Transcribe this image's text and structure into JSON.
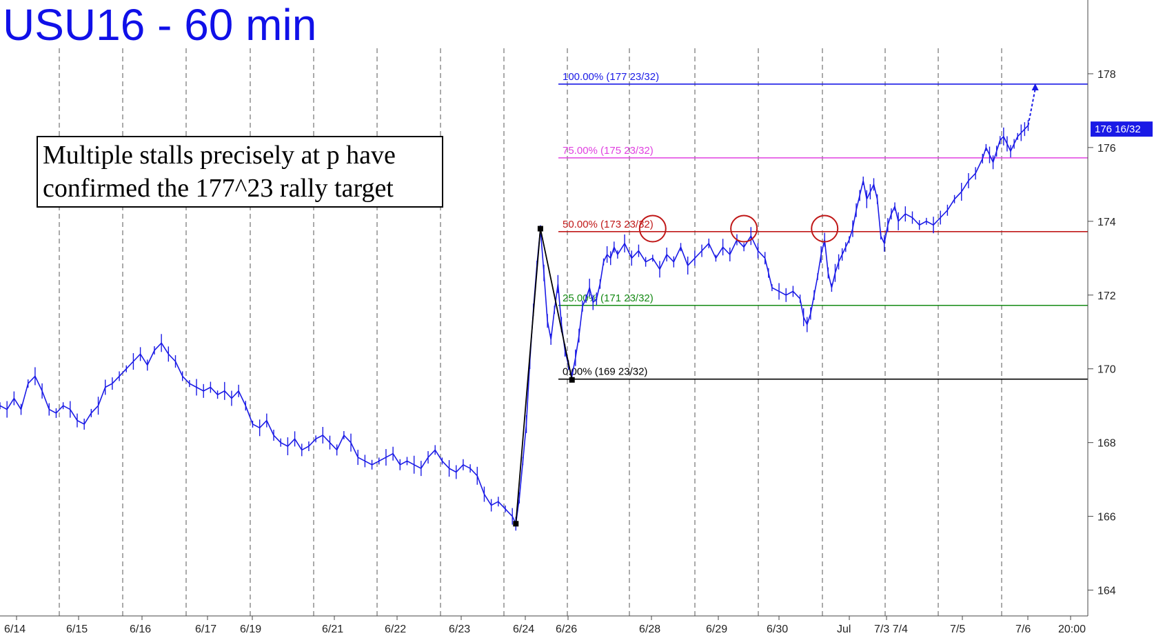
{
  "chart_data": {
    "type": "line",
    "title": "USU16 - 60 min",
    "y_axis": {
      "range": [
        163.3,
        180.0
      ],
      "ticks": [
        164,
        166,
        168,
        170,
        172,
        174,
        176,
        178
      ],
      "position": "right"
    },
    "x_axis": {
      "tick_labels": [
        "6/14",
        "6/15",
        "6/16",
        "6/17",
        "6/19",
        "6/21",
        "6/22",
        "6/23",
        "6/24",
        "6/26",
        "6/28",
        "6/29",
        "6/30",
        "Jul",
        "7/3 7/4",
        "7/5",
        "7/6",
        "20:00"
      ]
    },
    "grid": "vertical dashed session separators",
    "last_price": {
      "value": 176.5,
      "label": "176 16/32",
      "color": "#1a1ae6"
    },
    "series": [
      {
        "color": "#1a1ae6",
        "points": [
          [
            0,
            169.0
          ],
          [
            2,
            168.9
          ],
          [
            4,
            169.2
          ],
          [
            6,
            168.9
          ],
          [
            8,
            169.6
          ],
          [
            10,
            169.8
          ],
          [
            12,
            169.4
          ],
          [
            14,
            168.9
          ],
          [
            16,
            168.8
          ],
          [
            18,
            169.0
          ],
          [
            20,
            168.9
          ],
          [
            22,
            168.6
          ],
          [
            24,
            168.5
          ],
          [
            26,
            168.8
          ],
          [
            28,
            169.0
          ],
          [
            30,
            169.5
          ],
          [
            32,
            169.6
          ],
          [
            34,
            169.8
          ],
          [
            36,
            170.0
          ],
          [
            38,
            170.2
          ],
          [
            40,
            170.4
          ],
          [
            42,
            170.1
          ],
          [
            44,
            170.5
          ],
          [
            46,
            170.7
          ],
          [
            48,
            170.4
          ],
          [
            50,
            170.2
          ],
          [
            52,
            169.8
          ],
          [
            54,
            169.6
          ],
          [
            56,
            169.5
          ],
          [
            58,
            169.4
          ],
          [
            60,
            169.5
          ],
          [
            62,
            169.3
          ],
          [
            64,
            169.4
          ],
          [
            66,
            169.2
          ],
          [
            68,
            169.4
          ],
          [
            70,
            169.0
          ],
          [
            72,
            168.5
          ],
          [
            74,
            168.4
          ],
          [
            76,
            168.6
          ],
          [
            78,
            168.2
          ],
          [
            80,
            168.0
          ],
          [
            82,
            167.9
          ],
          [
            84,
            168.1
          ],
          [
            86,
            167.8
          ],
          [
            88,
            167.9
          ],
          [
            90,
            168.1
          ],
          [
            92,
            168.2
          ],
          [
            94,
            168.0
          ],
          [
            96,
            167.8
          ],
          [
            98,
            168.2
          ],
          [
            100,
            168.0
          ],
          [
            102,
            167.6
          ],
          [
            104,
            167.5
          ],
          [
            106,
            167.4
          ],
          [
            108,
            167.5
          ],
          [
            110,
            167.6
          ],
          [
            112,
            167.7
          ],
          [
            114,
            167.4
          ],
          [
            116,
            167.5
          ],
          [
            118,
            167.4
          ],
          [
            120,
            167.3
          ],
          [
            122,
            167.6
          ],
          [
            124,
            167.8
          ],
          [
            126,
            167.5
          ],
          [
            128,
            167.3
          ],
          [
            130,
            167.2
          ],
          [
            132,
            167.4
          ],
          [
            134,
            167.3
          ],
          [
            136,
            167.1
          ],
          [
            138,
            166.6
          ],
          [
            140,
            166.3
          ],
          [
            142,
            166.4
          ],
          [
            144,
            166.2
          ],
          [
            146,
            166.0
          ],
          [
            147,
            165.8
          ],
          [
            148,
            166.5
          ],
          [
            149,
            167.5
          ],
          [
            150,
            168.5
          ],
          [
            151,
            170.2
          ],
          [
            152,
            171.6
          ],
          [
            153,
            172.8
          ],
          [
            154,
            173.8
          ],
          [
            155,
            172.6
          ],
          [
            156,
            171.3
          ],
          [
            157,
            170.8
          ],
          [
            158,
            171.6
          ],
          [
            159,
            172.3
          ],
          [
            160,
            171.2
          ],
          [
            161,
            170.5
          ],
          [
            162,
            170.1
          ],
          [
            163,
            169.8
          ],
          [
            164,
            170.3
          ],
          [
            165,
            170.9
          ],
          [
            166,
            171.7
          ],
          [
            167,
            171.9
          ],
          [
            168,
            172.2
          ],
          [
            169,
            171.8
          ],
          [
            170,
            171.9
          ],
          [
            171,
            172.3
          ],
          [
            172,
            172.9
          ],
          [
            173,
            173.1
          ],
          [
            174,
            173.0
          ],
          [
            175,
            173.3
          ],
          [
            176,
            173.1
          ],
          [
            178,
            173.4
          ],
          [
            180,
            173.0
          ],
          [
            182,
            173.2
          ],
          [
            184,
            172.9
          ],
          [
            186,
            173.0
          ],
          [
            188,
            172.7
          ],
          [
            190,
            173.1
          ],
          [
            192,
            172.9
          ],
          [
            194,
            173.3
          ],
          [
            196,
            172.8
          ],
          [
            198,
            173.0
          ],
          [
            200,
            173.2
          ],
          [
            202,
            173.4
          ],
          [
            204,
            173.0
          ],
          [
            206,
            173.3
          ],
          [
            208,
            173.1
          ],
          [
            210,
            173.5
          ],
          [
            212,
            173.3
          ],
          [
            214,
            173.6
          ],
          [
            216,
            173.2
          ],
          [
            218,
            173.0
          ],
          [
            219,
            172.6
          ],
          [
            220,
            172.2
          ],
          [
            222,
            172.1
          ],
          [
            224,
            172.0
          ],
          [
            226,
            172.1
          ],
          [
            228,
            171.9
          ],
          [
            229,
            171.4
          ],
          [
            230,
            171.2
          ],
          [
            231,
            171.5
          ],
          [
            232,
            172.0
          ],
          [
            233,
            172.5
          ],
          [
            234,
            173.1
          ],
          [
            235,
            173.5
          ],
          [
            236,
            172.6
          ],
          [
            237,
            172.2
          ],
          [
            238,
            172.6
          ],
          [
            239,
            172.9
          ],
          [
            240,
            173.1
          ],
          [
            241,
            173.3
          ],
          [
            242,
            173.5
          ],
          [
            243,
            173.8
          ],
          [
            244,
            174.3
          ],
          [
            245,
            174.7
          ],
          [
            246,
            175.1
          ],
          [
            247,
            174.6
          ],
          [
            248,
            174.8
          ],
          [
            249,
            175.0
          ],
          [
            250,
            174.6
          ],
          [
            251,
            173.6
          ],
          [
            252,
            173.4
          ],
          [
            253,
            173.9
          ],
          [
            254,
            174.2
          ],
          [
            255,
            174.4
          ],
          [
            256,
            174.0
          ],
          [
            258,
            174.2
          ],
          [
            260,
            174.1
          ],
          [
            262,
            173.9
          ],
          [
            264,
            174.0
          ],
          [
            266,
            173.9
          ],
          [
            268,
            174.1
          ],
          [
            270,
            174.3
          ],
          [
            272,
            174.6
          ],
          [
            274,
            174.8
          ],
          [
            276,
            175.1
          ],
          [
            278,
            175.3
          ],
          [
            280,
            175.7
          ],
          [
            281,
            176.0
          ],
          [
            282,
            175.8
          ],
          [
            283,
            175.6
          ],
          [
            284,
            175.9
          ],
          [
            285,
            176.2
          ],
          [
            286,
            176.3
          ],
          [
            287,
            176.1
          ],
          [
            288,
            175.9
          ],
          [
            289,
            176.1
          ],
          [
            290,
            176.3
          ],
          [
            291,
            176.4
          ],
          [
            292,
            176.5
          ],
          [
            293,
            176.6
          ]
        ]
      }
    ],
    "projection": {
      "from": [
        293,
        176.6
      ],
      "to": [
        295,
        177.7
      ],
      "style": "dashed-arrow"
    },
    "abc_pattern": {
      "points": [
        [
          147,
          165.8
        ],
        [
          154,
          173.8
        ],
        [
          163,
          169.7
        ]
      ]
    },
    "fib_levels": [
      {
        "label": "100.00% (177 23/32)",
        "value": 177.72,
        "color": "#1a1ae6"
      },
      {
        "label": "75.00% (175 23/32)",
        "value": 175.72,
        "color": "#e040e0"
      },
      {
        "label": "50.00% (173 23/32)",
        "value": 173.72,
        "color": "#c01818"
      },
      {
        "label": "25.00% (171 23/32)",
        "value": 171.72,
        "color": "#138a13"
      },
      {
        "label": "0.00% (169 23/32)",
        "value": 169.72,
        "color": "#000000"
      }
    ],
    "stall_circles": [
      [
        186,
        173.8
      ],
      [
        212,
        173.8
      ],
      [
        235,
        173.8
      ]
    ],
    "annotation": "Multiple stalls precisely at p have confirmed the 177^23 rally target",
    "annotation_lines": [
      "Multiple stalls precisely at p have",
      "confirmed the 177^23 rally target"
    ]
  }
}
